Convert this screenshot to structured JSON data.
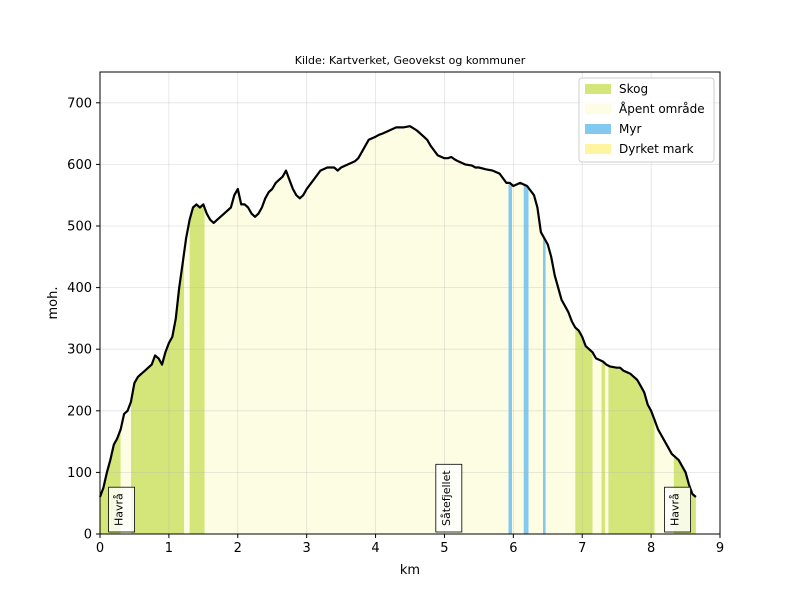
{
  "chart_data": {
    "type": "area",
    "title": "Kilde: Kartverket, Geovekst og kommuner",
    "xlabel": "km",
    "ylabel": "moh.",
    "xlim": [
      0,
      9
    ],
    "ylim": [
      0,
      750
    ],
    "xticks": [
      0,
      1,
      2,
      3,
      4,
      5,
      6,
      7,
      8,
      9
    ],
    "yticks": [
      0,
      100,
      200,
      300,
      400,
      500,
      600,
      700
    ],
    "grid": true,
    "legend_position": "top-right",
    "legend": [
      {
        "key": "skog",
        "label": "Skog",
        "color": "#d4e57a"
      },
      {
        "key": "apent",
        "label": "Åpent område",
        "color": "#fdfde4"
      },
      {
        "key": "myr",
        "label": "Myr",
        "color": "#82c8ef"
      },
      {
        "key": "dyrket",
        "label": "Dyrket mark",
        "color": "#fff5a0"
      }
    ],
    "profile": {
      "x": [
        0,
        0.05,
        0.1,
        0.15,
        0.2,
        0.25,
        0.3,
        0.35,
        0.4,
        0.45,
        0.5,
        0.55,
        0.6,
        0.65,
        0.7,
        0.75,
        0.8,
        0.85,
        0.9,
        0.95,
        1.0,
        1.05,
        1.1,
        1.15,
        1.2,
        1.25,
        1.3,
        1.35,
        1.4,
        1.45,
        1.5,
        1.55,
        1.6,
        1.65,
        1.7,
        1.8,
        1.9,
        1.95,
        2.0,
        2.05,
        2.1,
        2.15,
        2.2,
        2.25,
        2.3,
        2.35,
        2.4,
        2.45,
        2.5,
        2.55,
        2.6,
        2.65,
        2.7,
        2.75,
        2.8,
        2.85,
        2.9,
        2.95,
        3.0,
        3.1,
        3.2,
        3.3,
        3.4,
        3.45,
        3.5,
        3.6,
        3.7,
        3.75,
        3.8,
        3.9,
        4.0,
        4.05,
        4.1,
        4.2,
        4.3,
        4.4,
        4.5,
        4.6,
        4.7,
        4.75,
        4.8,
        4.9,
        5.0,
        5.05,
        5.1,
        5.15,
        5.2,
        5.3,
        5.4,
        5.45,
        5.5,
        5.6,
        5.7,
        5.8,
        5.9,
        5.95,
        6.0,
        6.1,
        6.2,
        6.3,
        6.35,
        6.4,
        6.5,
        6.55,
        6.6,
        6.7,
        6.8,
        6.85,
        6.9,
        6.95,
        7.0,
        7.05,
        7.1,
        7.15,
        7.2,
        7.3,
        7.35,
        7.4,
        7.5,
        7.55,
        7.6,
        7.7,
        7.75,
        7.8,
        7.85,
        7.9,
        7.95,
        8.0,
        8.05,
        8.1,
        8.2,
        8.3,
        8.4,
        8.5,
        8.55,
        8.6,
        8.65
      ],
      "y": [
        60,
        75,
        100,
        120,
        145,
        155,
        170,
        195,
        200,
        215,
        245,
        255,
        260,
        265,
        270,
        275,
        290,
        285,
        275,
        295,
        310,
        320,
        350,
        400,
        440,
        480,
        510,
        530,
        535,
        530,
        535,
        520,
        510,
        505,
        510,
        520,
        530,
        550,
        560,
        535,
        535,
        530,
        520,
        515,
        520,
        530,
        545,
        555,
        560,
        570,
        575,
        580,
        590,
        575,
        560,
        550,
        545,
        550,
        560,
        575,
        590,
        595,
        595,
        590,
        595,
        600,
        605,
        610,
        620,
        640,
        645,
        648,
        650,
        655,
        660,
        660,
        662,
        655,
        645,
        640,
        630,
        615,
        610,
        610,
        612,
        608,
        605,
        600,
        598,
        595,
        595,
        592,
        590,
        585,
        570,
        570,
        565,
        570,
        565,
        550,
        530,
        490,
        470,
        450,
        420,
        380,
        360,
        345,
        335,
        330,
        320,
        305,
        300,
        295,
        285,
        280,
        275,
        272,
        270,
        270,
        265,
        260,
        255,
        250,
        240,
        230,
        210,
        200,
        185,
        170,
        150,
        130,
        120,
        100,
        80,
        65,
        60
      ]
    },
    "landcover": [
      {
        "from": 0.0,
        "to": 0.3,
        "type": "skog"
      },
      {
        "from": 0.3,
        "to": 0.45,
        "type": "apent"
      },
      {
        "from": 0.45,
        "to": 1.22,
        "type": "skog"
      },
      {
        "from": 1.22,
        "to": 1.3,
        "type": "apent"
      },
      {
        "from": 1.3,
        "to": 1.52,
        "type": "skog"
      },
      {
        "from": 1.52,
        "to": 5.93,
        "type": "apent"
      },
      {
        "from": 5.93,
        "to": 5.98,
        "type": "myr"
      },
      {
        "from": 5.98,
        "to": 6.15,
        "type": "apent"
      },
      {
        "from": 6.15,
        "to": 6.22,
        "type": "myr"
      },
      {
        "from": 6.22,
        "to": 6.43,
        "type": "apent"
      },
      {
        "from": 6.43,
        "to": 6.47,
        "type": "myr"
      },
      {
        "from": 6.47,
        "to": 6.9,
        "type": "apent"
      },
      {
        "from": 6.9,
        "to": 7.15,
        "type": "skog"
      },
      {
        "from": 7.15,
        "to": 7.28,
        "type": "apent"
      },
      {
        "from": 7.28,
        "to": 7.33,
        "type": "skog"
      },
      {
        "from": 7.33,
        "to": 7.38,
        "type": "apent"
      },
      {
        "from": 7.38,
        "to": 8.05,
        "type": "skog"
      },
      {
        "from": 8.05,
        "to": 8.33,
        "type": "apent"
      },
      {
        "from": 8.33,
        "to": 8.65,
        "type": "skog"
      }
    ],
    "places": [
      {
        "name": "Havrå",
        "x": 0.27
      },
      {
        "name": "Såtefjellet",
        "x": 5.02
      },
      {
        "name": "Havrå",
        "x": 8.34
      }
    ]
  }
}
